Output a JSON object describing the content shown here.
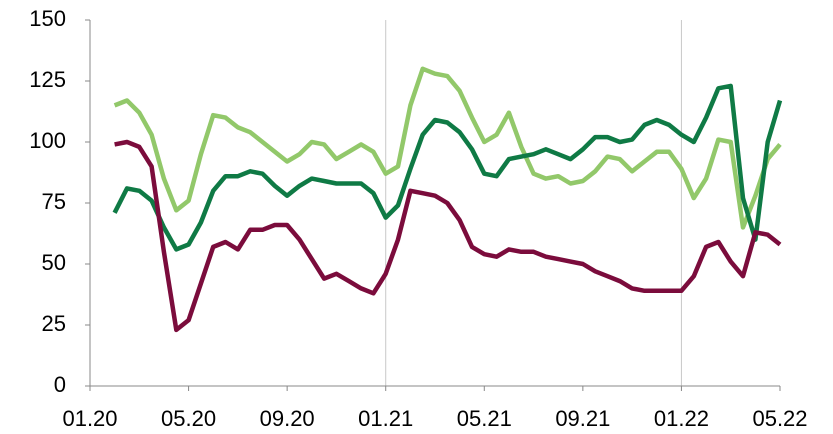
{
  "chart_data": {
    "type": "line",
    "x": [
      1,
      1.5,
      2,
      2.5,
      3,
      3.5,
      4,
      4.5,
      5,
      5.5,
      6,
      6.5,
      7,
      7.5,
      8,
      8.5,
      9,
      9.5,
      10,
      10.5,
      11,
      11.5,
      12,
      12.5,
      13,
      13.5,
      14,
      14.5,
      15,
      15.5,
      16,
      16.5,
      17,
      17.5,
      18,
      18.5,
      19,
      19.5,
      20,
      20.5,
      21,
      21.5,
      22,
      22.5,
      23,
      23.5,
      24,
      24.5,
      25,
      25.5,
      26,
      26.5,
      27,
      27.5,
      28
    ],
    "series": [
      {
        "color": "#92c86a",
        "values": [
          115,
          117,
          112,
          103,
          85,
          72,
          76,
          95,
          111,
          110,
          106,
          104,
          100,
          96,
          92,
          95,
          100,
          99,
          93,
          96,
          99,
          96,
          87,
          90,
          115,
          130,
          128,
          127,
          121,
          110,
          100,
          103,
          112,
          98,
          87,
          85,
          86,
          83,
          84,
          88,
          94,
          93,
          88,
          92,
          96,
          96,
          89,
          77,
          85,
          101,
          100,
          65,
          78,
          93,
          99
        ]
      },
      {
        "color": "#0f7a45",
        "values": [
          71,
          81,
          80,
          76,
          65,
          56,
          58,
          67,
          80,
          86,
          86,
          88,
          87,
          82,
          78,
          82,
          85,
          84,
          83,
          83,
          83,
          79,
          69,
          74,
          89,
          103,
          109,
          108,
          104,
          97,
          87,
          86,
          93,
          94,
          95,
          97,
          95,
          93,
          97,
          102,
          102,
          100,
          101,
          107,
          109,
          107,
          103,
          100,
          110,
          122,
          123,
          77,
          60,
          100,
          117
        ]
      },
      {
        "color": "#7b0c3c",
        "values": [
          99,
          100,
          98,
          90,
          55,
          23,
          27,
          42,
          57,
          59,
          56,
          64,
          64,
          66,
          66,
          60,
          52,
          44,
          46,
          43,
          40,
          38,
          46,
          60,
          80,
          79,
          78,
          75,
          68,
          57,
          54,
          53,
          56,
          55,
          55,
          53,
          52,
          51,
          50,
          47,
          45,
          43,
          40,
          39,
          39,
          39,
          39,
          45,
          57,
          59,
          51,
          45,
          63,
          62,
          58
        ]
      }
    ],
    "xlim": [
      0,
      28
    ],
    "xticks": [
      {
        "value": 0,
        "label": "01.20"
      },
      {
        "value": 4,
        "label": "05.20"
      },
      {
        "value": 8,
        "label": "09.20"
      },
      {
        "value": 12,
        "label": "01.21"
      },
      {
        "value": 16,
        "label": "05.21"
      },
      {
        "value": 20,
        "label": "09.21"
      },
      {
        "value": 24,
        "label": "01.22"
      },
      {
        "value": 28,
        "label": "05.22"
      }
    ],
    "xgrid": [
      12,
      24
    ],
    "ylim": [
      0,
      150
    ],
    "yticks": [
      0,
      25,
      50,
      75,
      100,
      125,
      150
    ]
  }
}
